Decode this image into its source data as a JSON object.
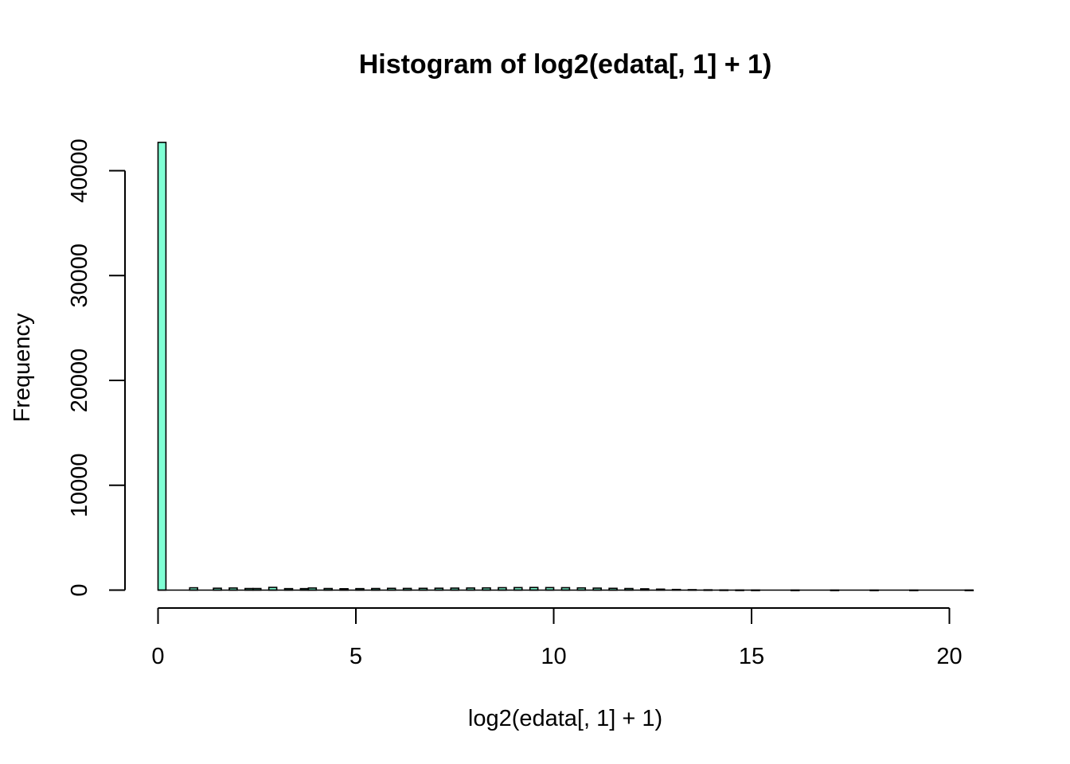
{
  "chart_data": {
    "type": "bar",
    "title": "Histogram of log2(edata[, 1] + 1)",
    "xlabel": "log2(edata[, 1] + 1)",
    "ylabel": "Frequency",
    "xlim": [
      0,
      20.6
    ],
    "ylim": [
      0,
      42700
    ],
    "x_ticks": [
      0,
      5,
      10,
      15,
      20
    ],
    "y_ticks": [
      0,
      10000,
      20000,
      30000,
      40000
    ],
    "bar_fill": "#7FFFD4",
    "bar_stroke": "#000000",
    "bin_width": 0.2,
    "bins_start": [
      0,
      0.8,
      1.4,
      1.8,
      2.2,
      2.4,
      2.8,
      3.2,
      3.6,
      3.8,
      4.2,
      4.6,
      5.0,
      5.4,
      5.8,
      6.2,
      6.6,
      7.0,
      7.4,
      7.8,
      8.2,
      8.6,
      9.0,
      9.4,
      9.8,
      10.2,
      10.6,
      11.0,
      11.4,
      11.8,
      12.2,
      12.6,
      13.0,
      13.4,
      13.8,
      14.2,
      14.6,
      15.0,
      16.0,
      17.0,
      18.0,
      19.0,
      20.4
    ],
    "values": [
      42700,
      220,
      180,
      200,
      150,
      150,
      260,
      140,
      140,
      200,
      150,
      130,
      140,
      150,
      170,
      160,
      170,
      180,
      190,
      200,
      210,
      230,
      240,
      250,
      240,
      230,
      210,
      190,
      170,
      150,
      120,
      90,
      60,
      40,
      25,
      15,
      8,
      5,
      3,
      2,
      1,
      1,
      1
    ]
  }
}
